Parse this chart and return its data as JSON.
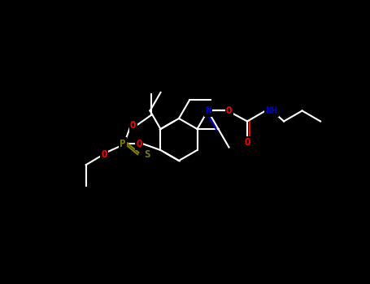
{
  "background": "#000000",
  "bond_color": "#FFFFFF",
  "figsize": [
    4.55,
    3.5
  ],
  "dpi": 100,
  "colors": {
    "O": "#FF0000",
    "N": "#0000CC",
    "S": "#808000",
    "P": "#808000",
    "C": "#FFFFFF"
  },
  "lw": 1.5
}
